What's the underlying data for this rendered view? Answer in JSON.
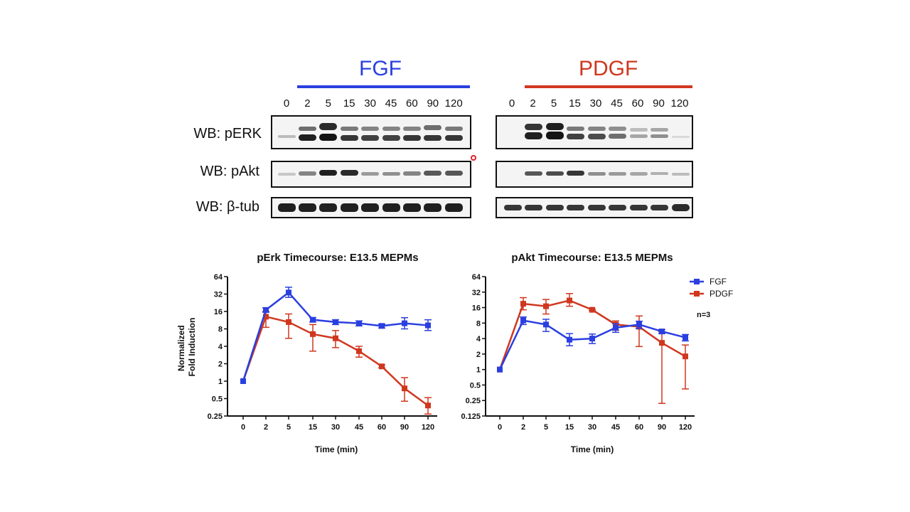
{
  "blots": {
    "fgf": {
      "title": "FGF",
      "color": "#2a3fe0",
      "lanes": [
        "0",
        "2",
        "5",
        "15",
        "30",
        "45",
        "60",
        "90",
        "120"
      ]
    },
    "pdgf": {
      "title": "PDGF",
      "color": "#d0371f",
      "lanes": [
        "0",
        "2",
        "5",
        "15",
        "30",
        "45",
        "60",
        "90",
        "120"
      ]
    },
    "rows": [
      {
        "label": "WB: pERK"
      },
      {
        "label": "WB: pAkt"
      },
      {
        "label": "WB: β-tub"
      }
    ]
  },
  "chart_data": [
    {
      "type": "line",
      "title": "pErk Timecourse: E13.5 MEPMs",
      "xlabel": "Time (min)",
      "ylabel": "Normalized\nFold Induction",
      "y_scale": "log2",
      "categories": [
        "0",
        "2",
        "5",
        "15",
        "30",
        "45",
        "60",
        "90",
        "120"
      ],
      "yticks": [
        "0.25",
        "0.5",
        "1",
        "2",
        "4",
        "8",
        "16",
        "32",
        "64"
      ],
      "ylim": [
        0.25,
        64
      ],
      "series": [
        {
          "name": "FGF",
          "color": "#2a3fe0",
          "values": [
            1,
            17,
            34,
            11.5,
            10.5,
            10,
            9,
            10,
            9.2
          ],
          "err_low": [
            1,
            15.5,
            28,
            10.5,
            9.5,
            9,
            8.3,
            8,
            7.5
          ],
          "err_high": [
            1,
            18.5,
            42,
            12.5,
            11.5,
            11,
            9.7,
            12.5,
            11.5
          ]
        },
        {
          "name": "PDGF",
          "color": "#d0371f",
          "values": [
            1,
            13,
            10.5,
            6.5,
            5.5,
            3.3,
            1.8,
            0.75,
            0.38
          ],
          "err_low": [
            1,
            8.5,
            5.5,
            3.3,
            3.8,
            2.6,
            1.7,
            0.45,
            0.27
          ],
          "err_high": [
            1,
            16,
            14.5,
            9.5,
            7.5,
            4,
            1.9,
            1.15,
            0.52
          ]
        }
      ]
    },
    {
      "type": "line",
      "title": "pAkt Timecourse: E13.5 MEPMs",
      "xlabel": "Time (min)",
      "ylabel": "",
      "y_scale": "log2",
      "categories": [
        "0",
        "2",
        "5",
        "15",
        "30",
        "45",
        "60",
        "90",
        "120"
      ],
      "yticks": [
        "0.125",
        "0.25",
        "0.5",
        "1",
        "2",
        "4",
        "8",
        "16",
        "32",
        "64"
      ],
      "ylim": [
        0.125,
        64
      ],
      "legend_position": "top-right",
      "annotation": "n=3",
      "series": [
        {
          "name": "FGF",
          "color": "#2a3fe0",
          "values": [
            1,
            9,
            7.5,
            3.8,
            4,
            6.5,
            7.5,
            5.5,
            4.2
          ],
          "err_low": [
            1,
            7.5,
            5.5,
            2.9,
            3.2,
            5.3,
            6.3,
            5,
            3.6
          ],
          "err_high": [
            1,
            10.5,
            9.5,
            5,
            4.9,
            7.8,
            8.7,
            6,
            4.8
          ]
        },
        {
          "name": "PDGF",
          "color": "#d0371f",
          "values": [
            1,
            19,
            17,
            22,
            14.5,
            7.5,
            6.8,
            3.3,
            1.8
          ],
          "err_low": [
            1,
            14.5,
            12,
            17,
            14,
            5.8,
            2.8,
            0.22,
            0.42
          ],
          "err_high": [
            1,
            25,
            23,
            30,
            15,
            8.8,
            11,
            5.4,
            3
          ]
        }
      ]
    }
  ]
}
